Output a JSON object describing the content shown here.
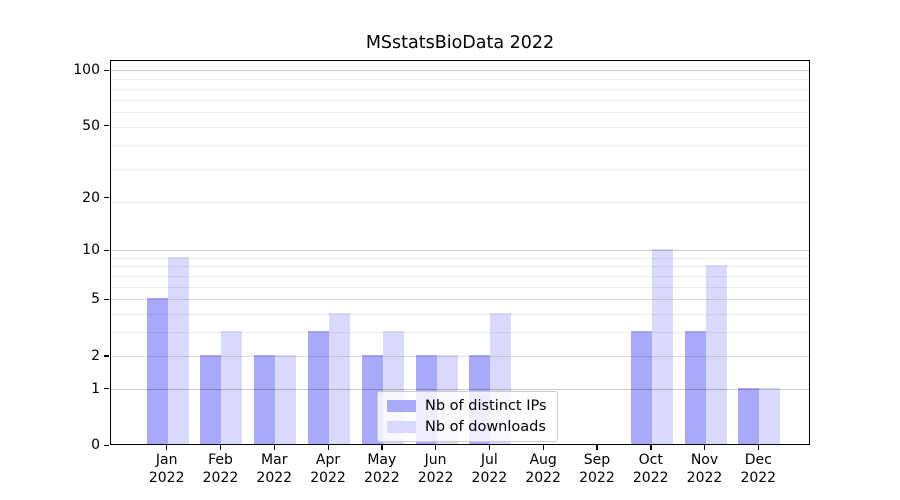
{
  "chart_data": {
    "type": "bar",
    "title": "MSstatsBioData 2022",
    "x_months": [
      "Jan",
      "Feb",
      "Mar",
      "Apr",
      "May",
      "Jun",
      "Jul",
      "Aug",
      "Sep",
      "Oct",
      "Nov",
      "Dec"
    ],
    "x_year": "2022",
    "categories": [
      "Jan 2022",
      "Feb 2022",
      "Mar 2022",
      "Apr 2022",
      "May 2022",
      "Jun 2022",
      "Jul 2022",
      "Aug 2022",
      "Sep 2022",
      "Oct 2022",
      "Nov 2022",
      "Dec 2022"
    ],
    "series": [
      {
        "name": "Nb of distinct IPs",
        "color": "#a9a9fa",
        "values": [
          5,
          2,
          2,
          3,
          2,
          2,
          2,
          0,
          0,
          3,
          3,
          1
        ]
      },
      {
        "name": "Nb of downloads",
        "color": "#d9d9fb",
        "values": [
          9,
          3,
          2,
          4,
          3,
          2,
          4,
          0,
          0,
          10,
          8,
          1
        ]
      }
    ],
    "y_ticks": [
      0,
      1,
      2,
      5,
      10,
      20,
      50,
      100
    ],
    "y_scale": "log1p",
    "ylim": [
      0,
      113
    ],
    "grid": true,
    "legend_position": "lower center",
    "colors": {
      "grid_major": "#c9c9c9",
      "grid_mid": "#e0e0e0",
      "grid_minor": "#ededed",
      "axis": "#000000"
    }
  }
}
